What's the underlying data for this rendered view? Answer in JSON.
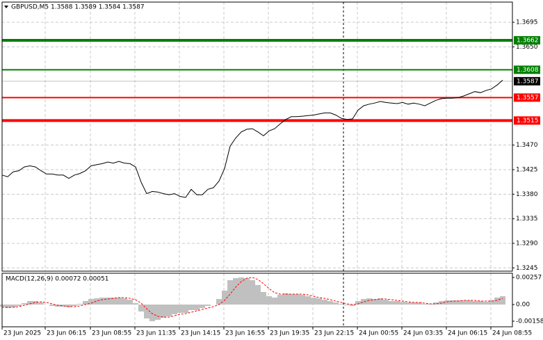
{
  "chart_data": [
    {
      "type": "line",
      "title": "GBPUSD,M5 1.3588 1.3589 1.3584 1.3587",
      "x": [
        0,
        1,
        2,
        3,
        4,
        5,
        6,
        7,
        8,
        9,
        10,
        11,
        12,
        13,
        14,
        15,
        16,
        17,
        18,
        19,
        20,
        21,
        22,
        23,
        24,
        25,
        26,
        27,
        28,
        29,
        30,
        31,
        32,
        33,
        34,
        35,
        36,
        37,
        38,
        39,
        40,
        41,
        42,
        43,
        44,
        45,
        46,
        47,
        48,
        49,
        50,
        51,
        52,
        53,
        54,
        55,
        56,
        57,
        58,
        59,
        60,
        61,
        62,
        63,
        64,
        65,
        66,
        67,
        68,
        69,
        70,
        71,
        72,
        73,
        74,
        75,
        76,
        77,
        78,
        79,
        80,
        81,
        82,
        83,
        84,
        85,
        86,
        87,
        88,
        89,
        90
      ],
      "xlim": [
        0,
        91.75
      ],
      "xticks": [
        {
          "value": 0,
          "label": "23 Jun 2025"
        },
        {
          "value": 7.75,
          "label": "23 Jun 06:15"
        },
        {
          "value": 15.875,
          "label": "23 Jun 08:55"
        },
        {
          "value": 23.875,
          "label": "23 Jun 11:35"
        },
        {
          "value": 31.875,
          "label": "23 Jun 14:15"
        },
        {
          "value": 39.875,
          "label": "23 Jun 16:55"
        },
        {
          "value": 47.875,
          "label": "23 Jun 19:35"
        },
        {
          "value": 55.875,
          "label": "23 Jun 22:15"
        },
        {
          "value": 63.875,
          "label": "24 Jun 00:55"
        },
        {
          "value": 71.875,
          "label": "24 Jun 03:35"
        },
        {
          "value": 79.875,
          "label": "24 Jun 06:15"
        },
        {
          "value": 87.875,
          "label": "24 Jun 08:55"
        }
      ],
      "ylim": [
        1.3239,
        1.3732
      ],
      "yticks": [
        1.3695,
        {
          "value": 1.365,
          "label": "1.3650"
        },
        {
          "value": 1.347,
          "label": "1.3470"
        },
        1.3425,
        {
          "value": 1.338,
          "label": "1.3380"
        },
        1.3335,
        {
          "value": 1.329,
          "label": "1.3290"
        },
        1.3245
      ],
      "grid": true,
      "series": [
        {
          "color": "#000000",
          "values": [
            1.3415,
            1.3412,
            1.3421,
            1.3423,
            1.343,
            1.3432,
            1.343,
            1.3423,
            1.3417,
            1.3417,
            1.3415,
            1.3415,
            1.3409,
            1.3415,
            1.3418,
            1.3423,
            1.3432,
            1.3434,
            1.3436,
            1.3439,
            1.3437,
            1.344,
            1.3437,
            1.3436,
            1.343,
            1.3402,
            1.3381,
            1.3385,
            1.3384,
            1.3381,
            1.3379,
            1.3381,
            1.3376,
            1.3374,
            1.3389,
            1.3379,
            1.3379,
            1.3389,
            1.3392,
            1.3404,
            1.3427,
            1.3468,
            1.3483,
            1.3494,
            1.3499,
            1.35,
            1.3494,
            1.3487,
            1.3496,
            1.35,
            1.3509,
            1.3517,
            1.3522,
            1.3522,
            1.3523,
            1.3524,
            1.3525,
            1.3527,
            1.3529,
            1.3529,
            1.3525,
            1.3519,
            1.3517,
            1.3518,
            1.3534,
            1.3542,
            1.3545,
            1.3547,
            1.355,
            1.3548,
            1.3547,
            1.3546,
            1.3548,
            1.3545,
            1.3547,
            1.3545,
            1.3542,
            1.3547,
            1.3552,
            1.3555,
            1.3556,
            1.3556,
            1.3557,
            1.356,
            1.3564,
            1.3568,
            1.3566,
            1.357,
            1.3573,
            1.358,
            1.3589
          ]
        }
      ],
      "levels": [
        {
          "value": 1.3662,
          "color": "#008000"
        },
        {
          "value": 1.3608,
          "color": "#008000"
        },
        {
          "value": 1.3557,
          "color": "#ff0000"
        },
        {
          "value": 1.3515,
          "color": "#ff0000"
        }
      ],
      "last": 1.3587
    },
    {
      "type": "macd",
      "title": "MACD(12,26,9) 0.00072 0.00051",
      "ylim": [
        -0.00211,
        0.00297
      ],
      "yticks": [
        0.00257,
        {
          "value": 0,
          "label": "0.00"
        },
        -0.00158
      ],
      "series": [
        {
          "type": "bar",
          "color": "#c0c0c0",
          "values": [
            -0.0002,
            -0.00033,
            -0.00026,
            -0.00013,
            0.00013,
            0.00033,
            0.00033,
            0.0002,
            0,
            -0.00013,
            -0.0002,
            -0.0002,
            -0.00026,
            -0.00013,
            7e-05,
            0.00033,
            0.00053,
            0.00059,
            0.00066,
            0.00066,
            0.00066,
            0.00066,
            0.00059,
            0.00046,
            0.00013,
            -0.00066,
            -0.00132,
            -0.00158,
            -0.00145,
            -0.00125,
            -0.00112,
            -0.00092,
            -0.00079,
            -0.00079,
            -0.00053,
            -0.00053,
            -0.00033,
            -0.00013,
            0,
            0.00053,
            0.00132,
            0.00231,
            0.00251,
            0.00257,
            0.00251,
            0.00231,
            0.00185,
            0.00119,
            0.00079,
            0.00066,
            0.00092,
            0.00106,
            0.00099,
            0.00099,
            0.00092,
            0.00079,
            0.00066,
            0.00059,
            0.00046,
            0.00033,
            0.0002,
            7e-05,
            -7e-05,
            -0.00013,
            0.00033,
            0.00053,
            0.00059,
            0.00053,
            0.00059,
            0.00046,
            0.00033,
            0.00033,
            0.00026,
            0.0002,
            0.0002,
            0.0002,
            7e-05,
            7e-05,
            0.0002,
            0.00033,
            0.0004,
            0.0004,
            0.0004,
            0.0004,
            0.0004,
            0.00033,
            0.00033,
            0.00026,
            0.0004,
            0.00066,
            0.00079
          ]
        },
        {
          "type": "line",
          "color": "#ff0000",
          "dashed": true,
          "values": [
            -0.00026,
            -0.00026,
            -0.00026,
            -0.0002,
            -7e-05,
            7e-05,
            0.0002,
            0.00026,
            0.0002,
            7e-05,
            -7e-05,
            -0.00013,
            -0.0002,
            -0.0002,
            -0.00013,
            0,
            0.00013,
            0.00033,
            0.00046,
            0.00053,
            0.00059,
            0.00066,
            0.00066,
            0.00059,
            0.00046,
            0.00013,
            -0.0004,
            -0.00086,
            -0.00112,
            -0.00119,
            -0.00119,
            -0.00106,
            -0.00092,
            -0.00086,
            -0.00073,
            -0.00059,
            -0.00046,
            -0.00033,
            -0.0002,
            0,
            0.0004,
            0.00099,
            0.00165,
            0.00218,
            0.00251,
            0.00257,
            0.00238,
            0.00198,
            0.00152,
            0.00112,
            0.00099,
            0.00099,
            0.00099,
            0.00099,
            0.00099,
            0.00092,
            0.00079,
            0.00066,
            0.00059,
            0.00046,
            0.00033,
            0.0002,
            7e-05,
            0,
            7e-05,
            0.00026,
            0.0004,
            0.00046,
            0.00053,
            0.00053,
            0.00046,
            0.0004,
            0.00033,
            0.00026,
            0.0002,
            0.0002,
            0.00013,
            7e-05,
            7e-05,
            0.00013,
            0.00026,
            0.00033,
            0.00033,
            0.0004,
            0.0004,
            0.0004,
            0.00033,
            0.00033,
            0.00033,
            0.0004,
            0.00059
          ]
        }
      ]
    }
  ]
}
